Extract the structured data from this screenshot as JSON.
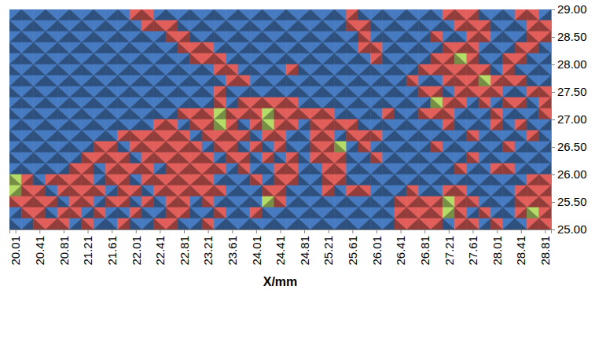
{
  "chart_data": {
    "type": "heatmap",
    "x_label": "X/mm",
    "x": [
      20.01,
      20.21,
      20.41,
      20.61,
      20.81,
      21.01,
      21.21,
      21.41,
      21.61,
      21.81,
      22.01,
      22.21,
      22.41,
      22.61,
      22.81,
      23.01,
      23.21,
      23.41,
      23.61,
      23.81,
      24.01,
      24.21,
      24.41,
      24.61,
      24.81,
      25.01,
      25.21,
      25.41,
      25.61,
      25.81,
      26.01,
      26.21,
      26.41,
      26.61,
      26.81,
      27.01,
      27.21,
      27.41,
      27.61,
      27.81,
      28.01,
      28.21,
      28.41,
      28.61,
      28.81
    ],
    "y": [
      28.9,
      28.7,
      28.5,
      28.3,
      28.1,
      27.9,
      27.7,
      27.5,
      27.3,
      27.1,
      26.9,
      26.7,
      26.5,
      26.3,
      26.1,
      25.9,
      25.7,
      25.5,
      25.3,
      25.1
    ],
    "z": [
      [
        0,
        0,
        0,
        0,
        0,
        0,
        0,
        0,
        0,
        0,
        1,
        1,
        0,
        0,
        0,
        0,
        0,
        0,
        0,
        0,
        0,
        0,
        0,
        0,
        0,
        0,
        0,
        0,
        1,
        0,
        0,
        0,
        0,
        0,
        0,
        0,
        1,
        1,
        1,
        0,
        0,
        0,
        1,
        1,
        0
      ],
      [
        0,
        0,
        0,
        0,
        0,
        0,
        0,
        0,
        0,
        0,
        0,
        1,
        1,
        1,
        0,
        0,
        0,
        0,
        0,
        0,
        0,
        0,
        0,
        0,
        0,
        0,
        0,
        0,
        1,
        1,
        0,
        0,
        0,
        0,
        0,
        0,
        0,
        1,
        1,
        1,
        0,
        0,
        0,
        1,
        1
      ],
      [
        0,
        0,
        0,
        0,
        0,
        0,
        0,
        0,
        0,
        0,
        0,
        0,
        0,
        1,
        1,
        0,
        0,
        0,
        0,
        0,
        0,
        0,
        0,
        0,
        0,
        0,
        0,
        0,
        0,
        1,
        0,
        0,
        0,
        0,
        0,
        1,
        0,
        0,
        1,
        1,
        0,
        0,
        0,
        1,
        1
      ],
      [
        0,
        0,
        0,
        0,
        0,
        0,
        0,
        0,
        0,
        0,
        0,
        0,
        0,
        0,
        1,
        1,
        1,
        0,
        0,
        0,
        0,
        0,
        0,
        0,
        0,
        0,
        0,
        0,
        0,
        1,
        1,
        0,
        0,
        0,
        0,
        0,
        1,
        1,
        1,
        0,
        0,
        0,
        1,
        1,
        0
      ],
      [
        0,
        0,
        0,
        0,
        0,
        0,
        0,
        0,
        0,
        0,
        0,
        0,
        0,
        0,
        0,
        1,
        1,
        1,
        0,
        0,
        0,
        0,
        0,
        0,
        0,
        0,
        0,
        0,
        0,
        0,
        1,
        0,
        0,
        0,
        0,
        1,
        1,
        2,
        1,
        0,
        0,
        1,
        1,
        0,
        0
      ],
      [
        0,
        0,
        0,
        0,
        0,
        0,
        0,
        0,
        0,
        0,
        0,
        0,
        0,
        0,
        0,
        0,
        0,
        1,
        1,
        0,
        0,
        0,
        0,
        1,
        0,
        0,
        0,
        0,
        0,
        0,
        0,
        0,
        0,
        0,
        1,
        1,
        1,
        1,
        1,
        1,
        0,
        1,
        0,
        0,
        0
      ],
      [
        0,
        0,
        0,
        0,
        0,
        0,
        0,
        0,
        0,
        0,
        0,
        0,
        0,
        0,
        0,
        0,
        0,
        0,
        1,
        1,
        0,
        0,
        0,
        0,
        0,
        0,
        0,
        0,
        0,
        0,
        0,
        0,
        0,
        1,
        0,
        0,
        1,
        1,
        1,
        2,
        1,
        1,
        1,
        0,
        0
      ],
      [
        0,
        0,
        0,
        0,
        0,
        0,
        0,
        0,
        0,
        0,
        0,
        0,
        0,
        0,
        0,
        0,
        0,
        1,
        0,
        0,
        0,
        0,
        0,
        0,
        0,
        0,
        0,
        0,
        0,
        0,
        0,
        0,
        0,
        0,
        1,
        1,
        0,
        1,
        1,
        1,
        1,
        0,
        0,
        1,
        1
      ],
      [
        0,
        0,
        0,
        0,
        0,
        0,
        0,
        0,
        0,
        0,
        0,
        0,
        0,
        0,
        0,
        0,
        0,
        1,
        0,
        1,
        1,
        1,
        1,
        1,
        0,
        0,
        0,
        0,
        0,
        0,
        0,
        0,
        0,
        0,
        0,
        2,
        1,
        1,
        0,
        1,
        0,
        1,
        1,
        0,
        1
      ],
      [
        0,
        0,
        0,
        0,
        0,
        0,
        0,
        0,
        0,
        0,
        0,
        0,
        0,
        0,
        1,
        1,
        1,
        2,
        1,
        1,
        1,
        2,
        1,
        1,
        1,
        1,
        1,
        0,
        0,
        0,
        0,
        1,
        0,
        0,
        1,
        1,
        1,
        0,
        0,
        0,
        1,
        0,
        0,
        0,
        1
      ],
      [
        0,
        0,
        0,
        0,
        0,
        0,
        0,
        0,
        0,
        0,
        0,
        0,
        1,
        1,
        0,
        1,
        1,
        2,
        1,
        0,
        1,
        2,
        1,
        1,
        0,
        1,
        1,
        1,
        1,
        0,
        0,
        0,
        0,
        0,
        0,
        0,
        1,
        0,
        0,
        0,
        1,
        0,
        1,
        0,
        0
      ],
      [
        0,
        0,
        0,
        0,
        0,
        0,
        0,
        0,
        0,
        1,
        1,
        1,
        1,
        1,
        1,
        0,
        1,
        1,
        1,
        1,
        0,
        1,
        1,
        0,
        0,
        1,
        1,
        0,
        1,
        1,
        1,
        0,
        0,
        0,
        0,
        0,
        0,
        0,
        1,
        0,
        0,
        0,
        0,
        1,
        0
      ],
      [
        0,
        0,
        0,
        0,
        0,
        0,
        0,
        1,
        1,
        0,
        1,
        1,
        1,
        1,
        1,
        1,
        0,
        1,
        1,
        0,
        1,
        0,
        1,
        0,
        0,
        1,
        1,
        2,
        0,
        1,
        0,
        0,
        0,
        0,
        0,
        1,
        0,
        0,
        0,
        0,
        0,
        1,
        0,
        0,
        0
      ],
      [
        0,
        0,
        0,
        0,
        0,
        0,
        1,
        1,
        1,
        1,
        0,
        1,
        1,
        1,
        1,
        1,
        1,
        0,
        1,
        1,
        0,
        1,
        0,
        1,
        0,
        1,
        1,
        1,
        0,
        0,
        1,
        0,
        0,
        0,
        0,
        0,
        0,
        0,
        1,
        0,
        0,
        0,
        0,
        0,
        0
      ],
      [
        0,
        0,
        0,
        0,
        0,
        1,
        1,
        0,
        1,
        1,
        1,
        1,
        0,
        1,
        1,
        1,
        1,
        1,
        0,
        1,
        0,
        0,
        1,
        1,
        0,
        0,
        1,
        1,
        0,
        0,
        0,
        0,
        0,
        0,
        0,
        0,
        0,
        1,
        0,
        0,
        1,
        1,
        0,
        0,
        0
      ],
      [
        2,
        1,
        0,
        1,
        1,
        1,
        1,
        0,
        1,
        1,
        0,
        1,
        1,
        1,
        1,
        1,
        1,
        0,
        0,
        0,
        1,
        0,
        1,
        1,
        0,
        0,
        1,
        1,
        0,
        0,
        0,
        0,
        0,
        0,
        0,
        0,
        0,
        0,
        0,
        0,
        0,
        0,
        0,
        1,
        1
      ],
      [
        2,
        1,
        1,
        0,
        1,
        1,
        1,
        1,
        0,
        1,
        1,
        0,
        1,
        1,
        1,
        1,
        1,
        1,
        0,
        0,
        0,
        1,
        1,
        0,
        0,
        0,
        1,
        0,
        1,
        1,
        0,
        0,
        0,
        1,
        0,
        0,
        1,
        1,
        0,
        0,
        0,
        0,
        1,
        1,
        1
      ],
      [
        1,
        1,
        1,
        1,
        0,
        1,
        1,
        0,
        1,
        1,
        0,
        1,
        0,
        1,
        1,
        0,
        1,
        0,
        0,
        0,
        0,
        2,
        1,
        0,
        0,
        0,
        0,
        0,
        0,
        0,
        0,
        0,
        1,
        1,
        1,
        1,
        2,
        1,
        1,
        0,
        0,
        0,
        1,
        1,
        1
      ],
      [
        0,
        1,
        1,
        0,
        1,
        1,
        0,
        1,
        0,
        0,
        1,
        0,
        0,
        1,
        1,
        0,
        0,
        1,
        0,
        0,
        1,
        0,
        0,
        0,
        0,
        0,
        0,
        0,
        0,
        0,
        0,
        0,
        1,
        1,
        1,
        1,
        2,
        1,
        0,
        1,
        0,
        0,
        1,
        2,
        1
      ],
      [
        0,
        0,
        1,
        1,
        1,
        0,
        1,
        0,
        0,
        1,
        0,
        0,
        1,
        1,
        0,
        0,
        1,
        0,
        0,
        0,
        0,
        0,
        0,
        0,
        0,
        0,
        0,
        0,
        0,
        0,
        0,
        0,
        1,
        1,
        1,
        1,
        0,
        1,
        1,
        0,
        1,
        0,
        0,
        1,
        1
      ]
    ],
    "colors": [
      "#3c68a4",
      "#c0504d",
      "#9bbb59"
    ],
    "xlim": [
      19.91,
      28.91
    ],
    "xticks": [
      20.01,
      20.41,
      20.81,
      21.21,
      21.61,
      22.01,
      22.41,
      22.81,
      23.21,
      23.61,
      24.01,
      24.41,
      24.81,
      25.21,
      25.61,
      26.01,
      26.41,
      26.81,
      27.21,
      27.61,
      28.01,
      28.41,
      28.81
    ],
    "ylim": [
      25,
      29
    ],
    "yticks": [
      {
        "value": 25,
        "label": "25.00"
      },
      {
        "value": 25.5,
        "label": "25.50"
      },
      {
        "value": 26,
        "label": "26.00"
      },
      {
        "value": 26.5,
        "label": "26.50"
      },
      {
        "value": 27,
        "label": "27.00"
      },
      {
        "value": 27.5,
        "label": "27.50"
      },
      {
        "value": 28,
        "label": "28.00"
      },
      {
        "value": 28.5,
        "label": "28.50"
      },
      {
        "value": 29,
        "label": "29.00"
      }
    ],
    "grid": false
  }
}
